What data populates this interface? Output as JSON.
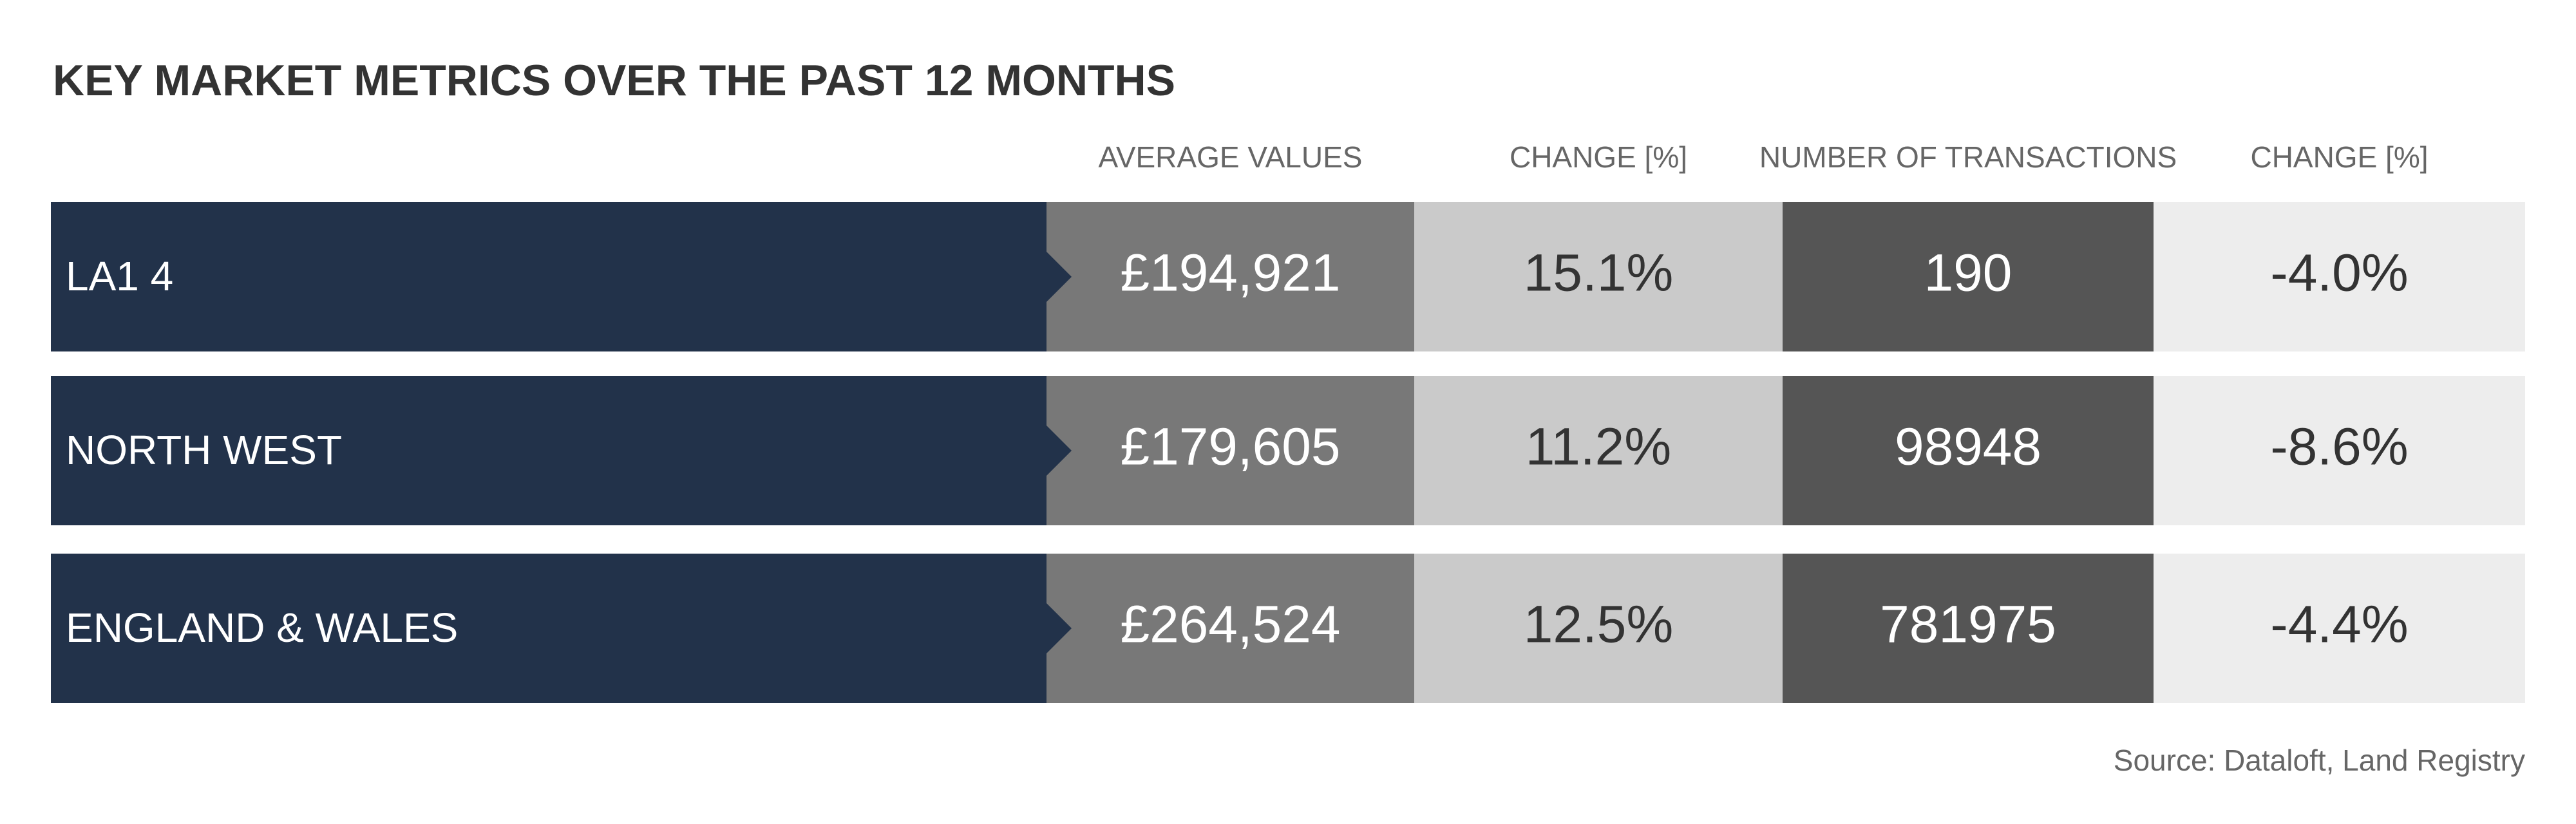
{
  "title": "KEY MARKET METRICS OVER THE PAST 12 MONTHS",
  "table": {
    "header": [
      "AVERAGE VALUES",
      "CHANGE [%]",
      "NUMBER OF TRANSACTIONS",
      "CHANGE [%]"
    ],
    "rows": [
      [
        "LA1 4",
        "£194,921",
        "15.1%",
        "190",
        "-4.0%"
      ],
      [
        "NORTH WEST",
        "£179,605",
        "11.2%",
        "98948",
        "-8.6%"
      ],
      [
        "ENGLAND & WALES",
        "£264,524",
        "12.5%",
        "781975",
        "-4.4%"
      ]
    ]
  },
  "source": "Source: Dataloft, Land Registry"
}
